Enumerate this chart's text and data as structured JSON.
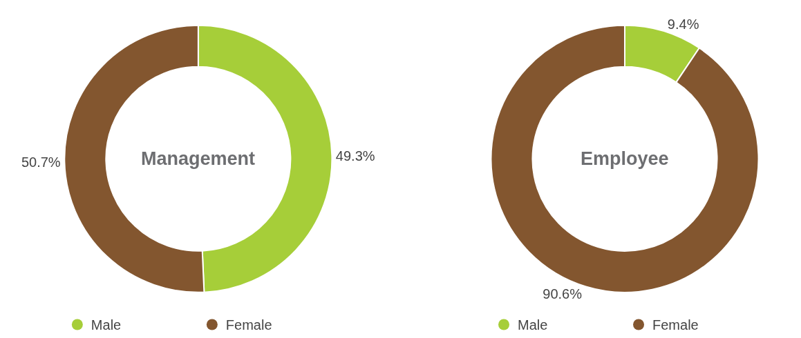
{
  "chart_data": [
    {
      "type": "donut",
      "title": "Management",
      "categories": [
        "Male",
        "Female"
      ],
      "values": [
        49.3,
        50.7
      ],
      "colors": [
        "#a6ce39",
        "#83562f"
      ],
      "value_labels": [
        "49.3%",
        "50.7%"
      ],
      "legend": "bottom"
    },
    {
      "type": "donut",
      "title": "Employee",
      "categories": [
        "Male",
        "Female"
      ],
      "values": [
        9.4,
        90.6
      ],
      "colors": [
        "#a6ce39",
        "#83562f"
      ],
      "value_labels": [
        "9.4%",
        "90.6%"
      ],
      "legend": "bottom"
    }
  ]
}
